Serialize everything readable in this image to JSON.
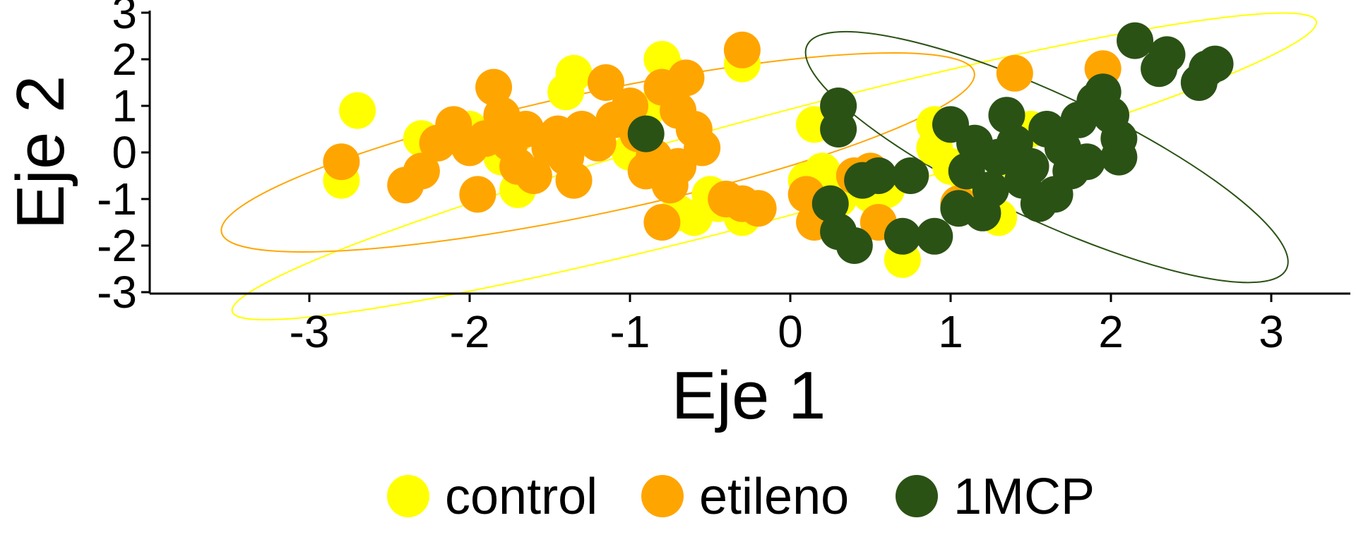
{
  "chart_data": {
    "type": "scatter",
    "xlabel": "Eje 1",
    "ylabel": "Eje 2",
    "xlim": [
      -4,
      3.5
    ],
    "ylim": [
      -3,
      3
    ],
    "xticks": [
      -3,
      -2,
      -1,
      0,
      1,
      2,
      3
    ],
    "yticks": [
      -3,
      -2,
      -1,
      0,
      1,
      2,
      3
    ],
    "grid": false,
    "legend_position": "bottom",
    "ellipses": true,
    "series": [
      {
        "name": "control",
        "color": "#FFFF00",
        "ellipse": {
          "cx": -0.1,
          "cy": -0.3,
          "rx": 3.5,
          "ry": 1.1,
          "angle": -15
        },
        "points": [
          [
            -2.7,
            0.9
          ],
          [
            -2.8,
            -0.6
          ],
          [
            -2.3,
            0.3
          ],
          [
            -2.0,
            0.5
          ],
          [
            -1.8,
            -0.1
          ],
          [
            -1.7,
            0.4
          ],
          [
            -1.7,
            -0.8
          ],
          [
            -1.6,
            -0.5
          ],
          [
            -1.5,
            0.1
          ],
          [
            -1.4,
            1.3
          ],
          [
            -1.35,
            1.7
          ],
          [
            -1.3,
            0.3
          ],
          [
            -1.0,
            0.0
          ],
          [
            -0.9,
            0.9
          ],
          [
            -0.8,
            2.0
          ],
          [
            -0.75,
            1.7
          ],
          [
            -0.7,
            -1.3
          ],
          [
            -0.6,
            -1.4
          ],
          [
            -0.5,
            -0.9
          ],
          [
            -0.45,
            -1.1
          ],
          [
            -0.3,
            -1.4
          ],
          [
            -0.3,
            1.9
          ],
          [
            0.1,
            -0.6
          ],
          [
            0.15,
            0.6
          ],
          [
            0.2,
            -0.4
          ],
          [
            0.3,
            -1.0
          ],
          [
            0.5,
            -0.9
          ],
          [
            0.6,
            -0.8
          ],
          [
            0.7,
            -2.3
          ],
          [
            0.9,
            0.6
          ],
          [
            0.9,
            0.1
          ],
          [
            1.0,
            -0.3
          ],
          [
            1.1,
            -0.5
          ],
          [
            1.3,
            -1.4
          ],
          [
            1.4,
            -0.2
          ],
          [
            1.5,
            0.5
          ]
        ]
      },
      {
        "name": "etileno",
        "color": "#FFA500",
        "ellipse": {
          "cx": -1.2,
          "cy": 0.0,
          "rx": 2.4,
          "ry": 1.3,
          "angle": -12
        },
        "points": [
          [
            -2.8,
            -0.2
          ],
          [
            -2.4,
            -0.7
          ],
          [
            -2.3,
            -0.4
          ],
          [
            -2.2,
            0.2
          ],
          [
            -2.1,
            0.6
          ],
          [
            -2.0,
            0.1
          ],
          [
            -1.95,
            -0.9
          ],
          [
            -1.9,
            0.3
          ],
          [
            -1.85,
            1.4
          ],
          [
            -1.8,
            0.8
          ],
          [
            -1.75,
            0.2
          ],
          [
            -1.7,
            -0.3
          ],
          [
            -1.65,
            0.5
          ],
          [
            -1.6,
            -0.5
          ],
          [
            -1.5,
            0.1
          ],
          [
            -1.45,
            0.4
          ],
          [
            -1.4,
            -0.1
          ],
          [
            -1.35,
            -0.6
          ],
          [
            -1.3,
            0.5
          ],
          [
            -1.2,
            0.2
          ],
          [
            -1.15,
            1.5
          ],
          [
            -1.1,
            0.7
          ],
          [
            -1.0,
            1.0
          ],
          [
            -0.95,
            0.4
          ],
          [
            -0.9,
            -0.4
          ],
          [
            -0.85,
            -0.1
          ],
          [
            -0.8,
            1.4
          ],
          [
            -0.8,
            -1.5
          ],
          [
            -0.75,
            -0.7
          ],
          [
            -0.7,
            0.9
          ],
          [
            -0.7,
            -0.3
          ],
          [
            -0.65,
            1.6
          ],
          [
            -0.6,
            0.5
          ],
          [
            -0.55,
            0.1
          ],
          [
            -0.4,
            -1.0
          ],
          [
            -0.3,
            -1.1
          ],
          [
            -0.3,
            2.2
          ],
          [
            -0.2,
            -1.2
          ],
          [
            0.1,
            -0.9
          ],
          [
            0.15,
            -1.5
          ],
          [
            0.4,
            -0.5
          ],
          [
            0.5,
            -0.4
          ],
          [
            0.55,
            -1.5
          ],
          [
            1.05,
            -1.1
          ],
          [
            1.4,
            1.7
          ],
          [
            1.95,
            1.8
          ]
        ]
      },
      {
        "name": "1MCP",
        "color": "#2B5215",
        "ellipse": {
          "cx": 1.6,
          "cy": -0.1,
          "rx": 1.65,
          "ry": 1.35,
          "angle": 25
        },
        "points": [
          [
            -0.9,
            0.4
          ],
          [
            0.25,
            -1.1
          ],
          [
            0.3,
            1.0
          ],
          [
            0.3,
            0.5
          ],
          [
            0.3,
            -1.7
          ],
          [
            0.4,
            -2.0
          ],
          [
            0.45,
            -0.6
          ],
          [
            0.55,
            -0.5
          ],
          [
            0.7,
            -1.8
          ],
          [
            0.75,
            -0.5
          ],
          [
            0.9,
            -1.8
          ],
          [
            1.0,
            0.6
          ],
          [
            1.05,
            -1.2
          ],
          [
            1.1,
            -0.4
          ],
          [
            1.15,
            0.2
          ],
          [
            1.2,
            -1.3
          ],
          [
            1.25,
            -0.8
          ],
          [
            1.3,
            -0.1
          ],
          [
            1.35,
            0.8
          ],
          [
            1.4,
            0.2
          ],
          [
            1.45,
            -0.6
          ],
          [
            1.5,
            -0.3
          ],
          [
            1.55,
            -1.1
          ],
          [
            1.6,
            0.5
          ],
          [
            1.65,
            -0.9
          ],
          [
            1.7,
            0.1
          ],
          [
            1.75,
            -0.4
          ],
          [
            1.8,
            0.7
          ],
          [
            1.85,
            -0.2
          ],
          [
            1.9,
            1.1
          ],
          [
            1.95,
            1.3
          ],
          [
            2.0,
            0.8
          ],
          [
            2.05,
            0.3
          ],
          [
            2.05,
            -0.1
          ],
          [
            2.15,
            2.4
          ],
          [
            2.3,
            1.8
          ],
          [
            2.35,
            2.1
          ],
          [
            2.55,
            1.5
          ],
          [
            2.6,
            1.8
          ],
          [
            2.65,
            1.9
          ]
        ]
      }
    ]
  }
}
